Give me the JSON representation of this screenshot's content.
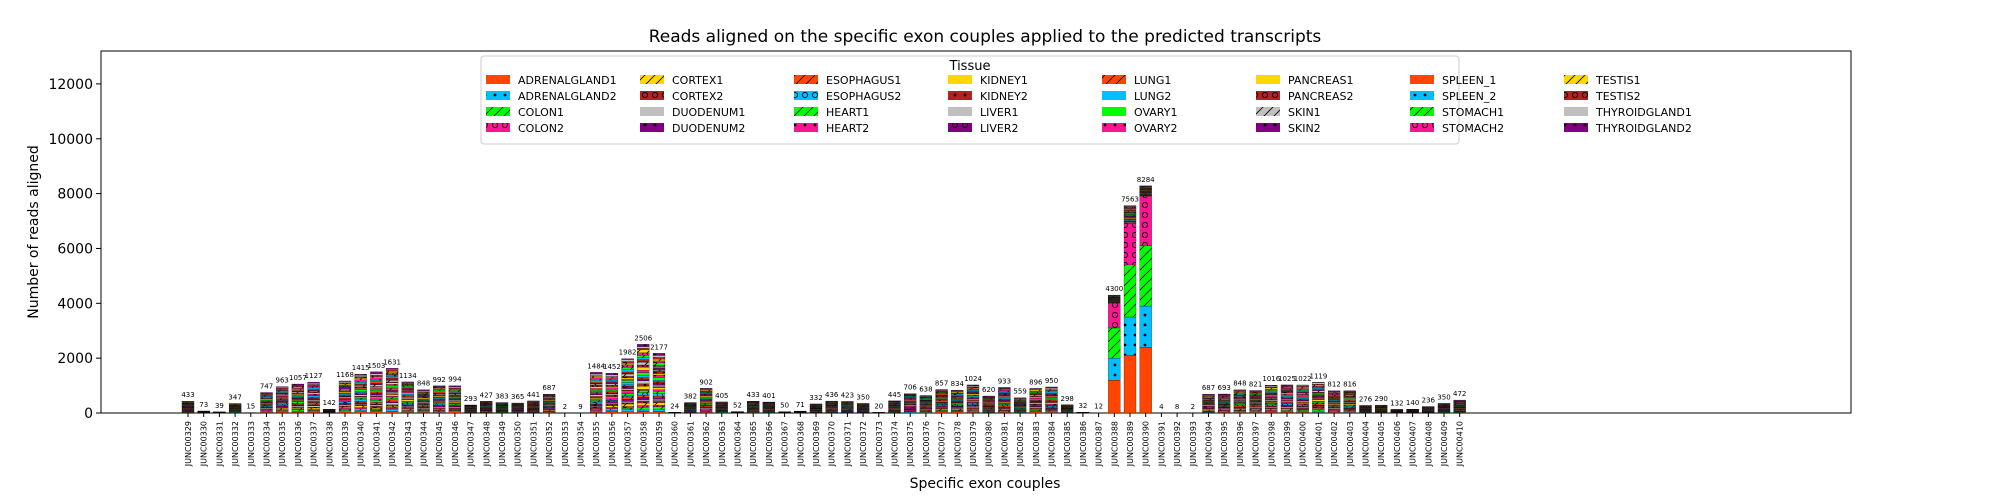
{
  "chart_data": {
    "type": "bar",
    "stacked": true,
    "title": "Reads aligned on the specific exon couples applied to the predicted transcripts",
    "xlabel": "Specific exon couples",
    "ylabel": "Number of reads aligned",
    "ylim": [
      0,
      13200
    ],
    "yticks": [
      0,
      2000,
      4000,
      6000,
      8000,
      10000,
      12000
    ],
    "grid": false,
    "legend_title": "Tissue",
    "legend_position": "top-center",
    "categories": [
      "JUNC00329",
      "JUNC00330",
      "JUNC00331",
      "JUNC00332",
      "JUNC00333",
      "JUNC00334",
      "JUNC00335",
      "JUNC00336",
      "JUNC00337",
      "JUNC00338",
      "JUNC00339",
      "JUNC00340",
      "JUNC00341",
      "JUNC00342",
      "JUNC00343",
      "JUNC00344",
      "JUNC00345",
      "JUNC00346",
      "JUNC00347",
      "JUNC00348",
      "JUNC00349",
      "JUNC00350",
      "JUNC00351",
      "JUNC00352",
      "JUNC00353",
      "JUNC00354",
      "JUNC00355",
      "JUNC00356",
      "JUNC00357",
      "JUNC00358",
      "JUNC00359",
      "JUNC00360",
      "JUNC00361",
      "JUNC00362",
      "JUNC00363",
      "JUNC00364",
      "JUNC00365",
      "JUNC00366",
      "JUNC00367",
      "JUNC00368",
      "JUNC00369",
      "JUNC00370",
      "JUNC00371",
      "JUNC00372",
      "JUNC00373",
      "JUNC00374",
      "JUNC00375",
      "JUNC00376",
      "JUNC00377",
      "JUNC00378",
      "JUNC00379",
      "JUNC00380",
      "JUNC00381",
      "JUNC00382",
      "JUNC00383",
      "JUNC00384",
      "JUNC00385",
      "JUNC00386",
      "JUNC00387",
      "JUNC00388",
      "JUNC00389",
      "JUNC00390",
      "JUNC00391",
      "JUNC00392",
      "JUNC00393",
      "JUNC00394",
      "JUNC00395",
      "JUNC00396",
      "JUNC00397",
      "JUNC00398",
      "JUNC00399",
      "JUNC00400",
      "JUNC00401",
      "JUNC00402",
      "JUNC00403",
      "JUNC00404",
      "JUNC00405",
      "JUNC00406",
      "JUNC00407",
      "JUNC00408",
      "JUNC00409",
      "JUNC00410"
    ],
    "totals": [
      433,
      73,
      39,
      347,
      15,
      747,
      963,
      1057,
      1127,
      142,
      1168,
      1415,
      1503,
      1631,
      1134,
      848,
      992,
      994,
      293,
      427,
      383,
      365,
      441,
      687,
      2,
      9,
      1484,
      1452,
      1982,
      2506,
      2177,
      24,
      382,
      902,
      405,
      52,
      433,
      401,
      50,
      71,
      332,
      436,
      423,
      350,
      20,
      445,
      706,
      638,
      857,
      834,
      1024,
      620,
      933,
      559,
      896,
      950,
      298,
      32,
      12,
      4300,
      7563,
      8284,
      4,
      8,
      2,
      687,
      693,
      848,
      821,
      1016,
      1025,
      1022,
      1119,
      812,
      816,
      276,
      290,
      132,
      140,
      236,
      350,
      472
    ],
    "total_labels": [
      "433",
      "73",
      "39",
      "347",
      "15",
      "747",
      "963",
      "1057",
      "1127",
      "142",
      "1168",
      "1415",
      "1503",
      "1631",
      "1134",
      "848",
      "992",
      "994",
      "293",
      "427",
      "383",
      "365",
      "441",
      "687",
      "2",
      "9",
      "1484",
      "1452",
      "1982",
      "2506",
      "2177",
      "24",
      "382",
      "902",
      "405",
      "52",
      "433",
      "401",
      "50",
      "71",
      "332",
      "436",
      "423",
      "350",
      "20",
      "445",
      "706",
      "638",
      "857",
      "834",
      "1024",
      "620",
      "933",
      "559",
      "896",
      "950",
      "298",
      "32",
      "12",
      "4300",
      "7563",
      "8284",
      "4",
      "8",
      "2",
      "687",
      "693",
      "848",
      "821",
      "1016",
      "1025",
      "1022",
      "1119",
      "812",
      "816",
      "276",
      "290",
      "132",
      "140",
      "236",
      "350",
      "472"
    ],
    "series": [
      {
        "name": "ADRENALGLAND1",
        "color": "#ff4500",
        "hatch": "none"
      },
      {
        "name": "ADRENALGLAND2",
        "color": "#00bfff",
        "hatch": "dots"
      },
      {
        "name": "COLON1",
        "color": "#00ff00",
        "hatch": "slash"
      },
      {
        "name": "COLON2",
        "color": "#ff1493",
        "hatch": "circles"
      },
      {
        "name": "CORTEX1",
        "color": "#ffd700",
        "hatch": "slash"
      },
      {
        "name": "CORTEX2",
        "color": "#b22222",
        "hatch": "circles"
      },
      {
        "name": "DUODENUM1",
        "color": "#c0c0c0",
        "hatch": "none"
      },
      {
        "name": "DUODENUM2",
        "color": "#800080",
        "hatch": "dots"
      },
      {
        "name": "ESOPHAGUS1",
        "color": "#ff4500",
        "hatch": "slash"
      },
      {
        "name": "ESOPHAGUS2",
        "color": "#00bfff",
        "hatch": "circles"
      },
      {
        "name": "HEART1",
        "color": "#00ff00",
        "hatch": "slash"
      },
      {
        "name": "HEART2",
        "color": "#ff1493",
        "hatch": "dots"
      },
      {
        "name": "KIDNEY1",
        "color": "#ffd700",
        "hatch": "none"
      },
      {
        "name": "KIDNEY2",
        "color": "#b22222",
        "hatch": "dots"
      },
      {
        "name": "LIVER1",
        "color": "#c0c0c0",
        "hatch": "none"
      },
      {
        "name": "LIVER2",
        "color": "#800080",
        "hatch": "circles"
      },
      {
        "name": "LUNG1",
        "color": "#ff4500",
        "hatch": "slash"
      },
      {
        "name": "LUNG2",
        "color": "#00bfff",
        "hatch": "none"
      },
      {
        "name": "OVARY1",
        "color": "#00ff00",
        "hatch": "none"
      },
      {
        "name": "OVARY2",
        "color": "#ff1493",
        "hatch": "dots"
      },
      {
        "name": "PANCREAS1",
        "color": "#ffd700",
        "hatch": "none"
      },
      {
        "name": "PANCREAS2",
        "color": "#b22222",
        "hatch": "circles"
      },
      {
        "name": "SKIN1",
        "color": "#c0c0c0",
        "hatch": "slash"
      },
      {
        "name": "SKIN2",
        "color": "#800080",
        "hatch": "dots"
      },
      {
        "name": "SPLEEN_1",
        "color": "#ff4500",
        "hatch": "none"
      },
      {
        "name": "SPLEEN_2",
        "color": "#00bfff",
        "hatch": "dots"
      },
      {
        "name": "STOMACH1",
        "color": "#00ff00",
        "hatch": "slash"
      },
      {
        "name": "STOMACH2",
        "color": "#ff1493",
        "hatch": "circles"
      },
      {
        "name": "TESTIS1",
        "color": "#ffd700",
        "hatch": "slash"
      },
      {
        "name": "TESTIS2",
        "color": "#b22222",
        "hatch": "circles"
      },
      {
        "name": "THYROIDGLAND1",
        "color": "#c0c0c0",
        "hatch": "none"
      },
      {
        "name": "THYROIDGLAND2",
        "color": "#800080",
        "hatch": "dots"
      }
    ],
    "dominant_segments_note": {
      "JUNC00388": {
        "ADRENALGLAND1": 1200,
        "ADRENALGLAND2": 800,
        "COLON1": 1100,
        "COLON2": 900
      },
      "JUNC00389": {
        "ADRENALGLAND1": 2100,
        "ADRENALGLAND2": 1400,
        "COLON1": 1900,
        "COLON2": 1500
      },
      "JUNC00390": {
        "ADRENALGLAND1": 2400,
        "ADRENALGLAND2": 1500,
        "COLON1": 2200,
        "COLON2": 1800
      }
    }
  }
}
